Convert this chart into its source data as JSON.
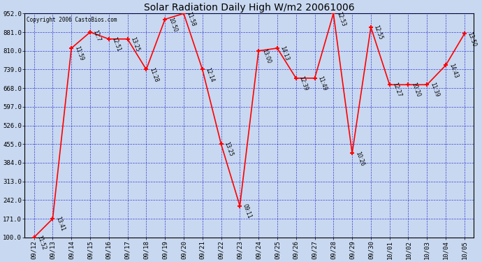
{
  "title": "Solar Radiation Daily High W/m2 20061006",
  "copyright": "Copyright 2006 CastoBios.com",
  "background_color": "#c8d8f0",
  "plot_bg_color": "#c8d8f0",
  "line_color": "#ff0000",
  "marker_color": "#ff0000",
  "grid_color": "#0000cc",
  "text_color": "#000000",
  "xlabels": [
    "09/12",
    "09/13",
    "09/14",
    "09/15",
    "09/16",
    "09/17",
    "09/18",
    "09/19",
    "09/20",
    "09/21",
    "09/22",
    "09/23",
    "09/24",
    "09/25",
    "09/26",
    "09/27",
    "09/28",
    "09/29",
    "09/30",
    "10/01",
    "10/02",
    "10/03",
    "10/04",
    "10/05"
  ],
  "values": [
    100,
    171,
    820,
    881,
    855,
    855,
    739,
    930,
    952,
    739,
    455,
    220,
    810,
    820,
    706,
    706,
    952,
    420,
    900,
    681,
    681,
    681,
    755,
    875
  ],
  "time_labels": [
    "11:52",
    "13:41",
    "11:59",
    "12:7",
    "12:51",
    "13:25",
    "11:28",
    "10:50",
    "11:58",
    "12:14",
    "13:25",
    "09:11",
    "13:00",
    "14:13",
    "12:39",
    "11:49",
    "12:53",
    "10:26",
    "12:55",
    "12:27",
    "10:20",
    "11:39",
    "14:43",
    "13:50"
  ],
  "ylim": [
    100,
    952
  ],
  "yticks": [
    100.0,
    171.0,
    242.0,
    313.0,
    384.0,
    455.0,
    526.0,
    597.0,
    668.0,
    739.0,
    810.0,
    881.0,
    952.0
  ],
  "figwidth": 6.9,
  "figheight": 3.75,
  "dpi": 100
}
